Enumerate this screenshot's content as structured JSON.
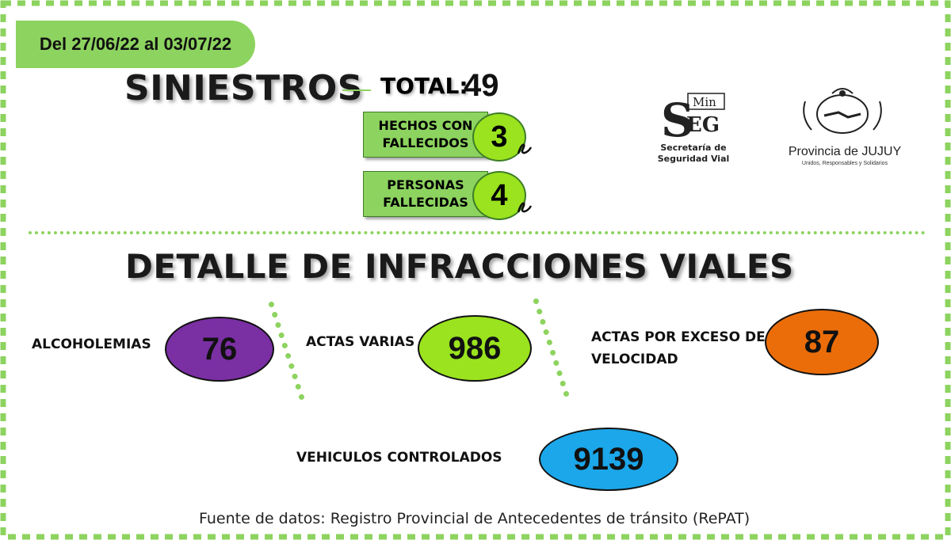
{
  "period": "Del 27/06/22 al 03/07/22",
  "siniestros": {
    "title": "SINIESTROS",
    "total_label": "TOTAL:",
    "total_value": "49",
    "hechos_label_line1": "HECHOS CON",
    "hechos_label_line2": "FALLECIDOS",
    "hechos_value": "3",
    "personas_label_line1": "PERSONAS",
    "personas_label_line2": "FALLECIDAS",
    "personas_value": "4",
    "ribbon_icon": "mourning-ribbon-icon"
  },
  "logos": {
    "seg_top": "Min",
    "seg_s": "S",
    "seg_eg": "EG",
    "seg_caption_line1": "Secretaría de",
    "seg_caption_line2": "Seguridad Vial",
    "jujuy_name": "Provincia de JUJUY",
    "jujuy_motto": "Unidos, Responsables y Solidarios"
  },
  "infracciones": {
    "title": "DETALLE DE INFRACCIONES VIALES",
    "alcoholemias_label": "ALCOHOLEMIAS",
    "alcoholemias_value": "76",
    "actas_varias_label": "ACTAS VARIAS",
    "actas_varias_value": "986",
    "velocidad_label": "ACTAS POR EXCESO DE VELOCIDAD",
    "velocidad_value": "87",
    "vehiculos_label": "VEHICULOS CONTROLADOS",
    "vehiculos_value": "9139"
  },
  "footer": "Fuente de datos: Registro Provincial de Antecedentes de tránsito (RePAT)",
  "colors": {
    "accent_green": "#8dd35f",
    "lime": "#9ae31e",
    "purple": "#7a2fa3",
    "orange": "#ea6d0a",
    "blue": "#1ba7ea"
  }
}
